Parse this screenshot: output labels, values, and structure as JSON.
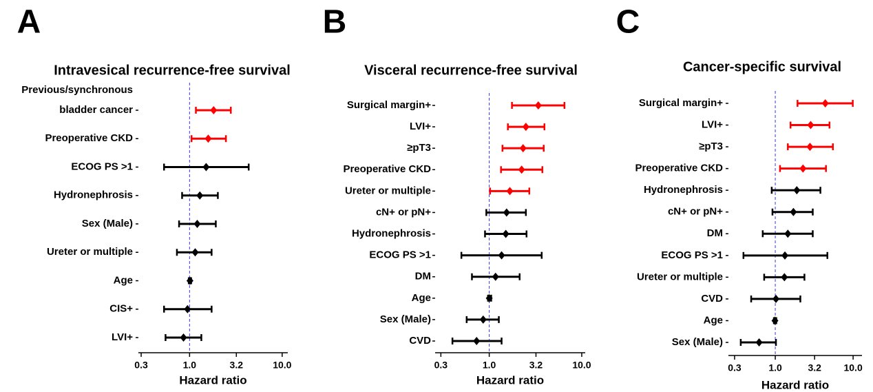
{
  "chart_data": [
    {
      "type": "forest",
      "panel_label": "A",
      "title": "Intravesical recurrence-free survival",
      "xlabel": "Hazard ratio",
      "xscale": "log",
      "xlim": [
        0.28,
        11.5
      ],
      "xticks": [
        0.3,
        {
          "value": 1,
          "label": "1.0"
        },
        3.2,
        {
          "value": 10,
          "label": "10.0"
        }
      ],
      "reference": 1,
      "categories": [
        "Previous/synchronous\nbladder cancer",
        "Preoperative CKD",
        "ECOG PS >1",
        "Hydronephrosis",
        "Sex (Male)",
        "Ureter or multiple",
        "Age",
        "CIS+",
        "LVI+"
      ],
      "values": [
        1.82,
        1.59,
        1.51,
        1.29,
        1.21,
        1.15,
        1.01,
        0.95,
        0.86
      ],
      "lower": [
        1.17,
        1.05,
        0.53,
        0.83,
        0.77,
        0.73,
        0.98,
        0.53,
        0.55
      ],
      "upper": [
        2.79,
        2.47,
        4.35,
        2.02,
        1.92,
        1.73,
        1.04,
        1.73,
        1.34
      ],
      "colors": [
        "#ff0000",
        "#ff0000",
        "#000000",
        "#000000",
        "#000000",
        "#000000",
        "#000000",
        "#000000",
        "#000000"
      ]
    },
    {
      "type": "forest",
      "panel_label": "B",
      "title": "Visceral recurrence-free survival",
      "xlabel": "Hazard ratio",
      "xscale": "log",
      "xlim": [
        0.26,
        10.9
      ],
      "xticks": [
        0.3,
        {
          "value": 1,
          "label": "1.0"
        },
        3.2,
        {
          "value": 10,
          "label": "10.0"
        }
      ],
      "reference": 1,
      "categories": [
        "Surgical margin+",
        "LVI+",
        "≥pT3",
        "Preoperative CKD",
        "Ureter or multiple",
        "cN+ or pN+",
        "Hydronephrosis",
        "ECOG PS >1",
        "DM",
        "Age",
        "Sex (Male)",
        "CVD"
      ],
      "values": [
        3.39,
        2.49,
        2.32,
        2.24,
        1.67,
        1.54,
        1.51,
        1.36,
        1.17,
        1.0,
        0.86,
        0.73
      ],
      "lower": [
        1.76,
        1.59,
        1.39,
        1.34,
        1.02,
        0.93,
        0.9,
        0.5,
        0.65,
        0.97,
        0.57,
        0.4
      ],
      "upper": [
        6.5,
        3.95,
        3.88,
        3.75,
        2.71,
        2.49,
        2.53,
        3.69,
        2.13,
        1.05,
        1.27,
        1.36
      ],
      "colors": [
        "#ff0000",
        "#ff0000",
        "#ff0000",
        "#ff0000",
        "#ff0000",
        "#000000",
        "#000000",
        "#000000",
        "#000000",
        "#000000",
        "#000000",
        "#000000"
      ]
    },
    {
      "type": "forest",
      "panel_label": "C",
      "title": "Cancer-specific survival",
      "xlabel": "Hazard ratio",
      "xscale": "log",
      "xlim": [
        0.25,
        13
      ],
      "xticks": [
        0.3,
        {
          "value": 1,
          "label": "1.0"
        },
        3.2,
        {
          "value": 10,
          "label": "10.0"
        }
      ],
      "reference": 1,
      "categories": [
        "Surgical margin+",
        "LVI+",
        "≥pT3",
        "Preoperative CKD",
        "Hydronephrosis",
        "cN+ or pN+",
        "DM",
        "ECOG PS >1",
        "Ureter or multiple",
        "CVD",
        "Age",
        "Sex (Male)"
      ],
      "values": [
        4.39,
        2.85,
        2.79,
        2.27,
        1.89,
        1.71,
        1.45,
        1.33,
        1.31,
        1.02,
        0.99,
        0.62
      ],
      "lower": [
        1.93,
        1.57,
        1.45,
        1.15,
        0.9,
        0.92,
        0.69,
        0.39,
        0.72,
        0.49,
        0.96,
        0.36
      ],
      "upper": [
        9.9,
        4.97,
        5.5,
        4.48,
        3.8,
        3.03,
        3.03,
        4.67,
        2.37,
        2.1,
        1.03,
        1.02
      ],
      "colors": [
        "#ff0000",
        "#ff0000",
        "#ff0000",
        "#ff0000",
        "#000000",
        "#000000",
        "#000000",
        "#000000",
        "#000000",
        "#000000",
        "#000000",
        "#000000"
      ]
    }
  ]
}
